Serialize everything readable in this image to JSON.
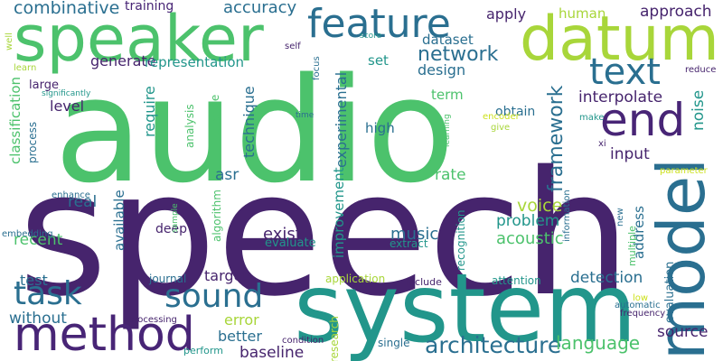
{
  "palette": {
    "dark_purple": "#46246d",
    "purple": "#482576",
    "blue": "#2a6f90",
    "teal": "#22968b",
    "green": "#4cc26c",
    "yellow_green": "#a8d63a",
    "yellow": "#cde11d"
  },
  "words": [
    {
      "text": "speech",
      "color": "#46246d"
    },
    {
      "text": "audio",
      "color": "#4cc26c"
    },
    {
      "text": "system",
      "color": "#22968b"
    },
    {
      "text": "speaker",
      "color": "#4cc26c"
    },
    {
      "text": "datum",
      "color": "#a8d63a"
    },
    {
      "text": "model",
      "color": "#2a6f90"
    },
    {
      "text": "feature",
      "color": "#2a6f90"
    },
    {
      "text": "end",
      "color": "#482576"
    },
    {
      "text": "method",
      "color": "#482576"
    },
    {
      "text": "task",
      "color": "#2a6f90"
    },
    {
      "text": "sound",
      "color": "#2a6f90"
    },
    {
      "text": "text",
      "color": "#2a6f90"
    },
    {
      "text": "architecture",
      "color": "#2a6f90"
    },
    {
      "text": "network",
      "color": "#2a6f90"
    },
    {
      "text": "framework",
      "color": "#2a6f90"
    },
    {
      "text": "language",
      "color": "#4cc26c"
    },
    {
      "text": "combinative",
      "color": "#2a6f90"
    },
    {
      "text": "accuracy",
      "color": "#2a6f90"
    },
    {
      "text": "training",
      "color": "#482576"
    },
    {
      "text": "apply",
      "color": "#46246d"
    },
    {
      "text": "human",
      "color": "#a8d63a"
    },
    {
      "text": "approach",
      "color": "#46246d"
    },
    {
      "text": "dataset",
      "color": "#2a6f90"
    },
    {
      "text": "generate",
      "color": "#46246d"
    },
    {
      "text": "representation",
      "color": "#22968b"
    },
    {
      "text": "set",
      "color": "#22968b"
    },
    {
      "text": "design",
      "color": "#2a6f90"
    },
    {
      "text": "interpolate",
      "color": "#46246d"
    },
    {
      "text": "noise",
      "color": "#22968b"
    },
    {
      "text": "level",
      "color": "#46246d"
    },
    {
      "text": "require",
      "color": "#22968b"
    },
    {
      "text": "technique",
      "color": "#2a6f90"
    },
    {
      "text": "experimental",
      "color": "#2a6f90"
    },
    {
      "text": "term",
      "color": "#4cc26c"
    },
    {
      "text": "large",
      "color": "#46246d"
    },
    {
      "text": "classification",
      "color": "#4cc26c"
    },
    {
      "text": "process",
      "color": "#2a6f90"
    },
    {
      "text": "analysis",
      "color": "#4cc26c"
    },
    {
      "text": "challenge",
      "color": "#4cc26c"
    },
    {
      "text": "high",
      "color": "#2a6f90"
    },
    {
      "text": "obtain",
      "color": "#2a6f90"
    },
    {
      "text": "input",
      "color": "#46246d"
    },
    {
      "text": "rate",
      "color": "#4cc26c"
    },
    {
      "text": "asr",
      "color": "#2a6f90"
    },
    {
      "text": "real",
      "color": "#2a6f90"
    },
    {
      "text": "recent",
      "color": "#4cc26c"
    },
    {
      "text": "voice",
      "color": "#a8d63a"
    },
    {
      "text": "problem",
      "color": "#22968b"
    },
    {
      "text": "acoustic",
      "color": "#4cc26c"
    },
    {
      "text": "music",
      "color": "#2a6f90"
    },
    {
      "text": "exist",
      "color": "#46246d"
    },
    {
      "text": "improvement",
      "color": "#22968b"
    },
    {
      "text": "available",
      "color": "#2a6f90"
    },
    {
      "text": "deep",
      "color": "#46246d"
    },
    {
      "text": "algorithm",
      "color": "#4cc26c"
    },
    {
      "text": "evaluate",
      "color": "#22968b"
    },
    {
      "text": "extract",
      "color": "#22968b"
    },
    {
      "text": "address",
      "color": "#2a6f90"
    },
    {
      "text": "target",
      "color": "#46246d"
    },
    {
      "text": "test",
      "color": "#2a6f90"
    },
    {
      "text": "detection",
      "color": "#2a6f90"
    },
    {
      "text": "evaluation",
      "color": "#2a6f90"
    },
    {
      "text": "source",
      "color": "#46246d"
    },
    {
      "text": "error",
      "color": "#a8d63a"
    },
    {
      "text": "better",
      "color": "#2a6f90"
    },
    {
      "text": "baseline",
      "color": "#46246d"
    },
    {
      "text": "without",
      "color": "#2a6f90"
    },
    {
      "text": "recognition",
      "color": "#22968b"
    },
    {
      "text": "research",
      "color": "#a8d63a"
    },
    {
      "text": "application",
      "color": "#a8d63a"
    },
    {
      "text": "include",
      "color": "#46246d"
    },
    {
      "text": "attention",
      "color": "#22968b"
    },
    {
      "text": "journal",
      "color": "#2a6f90"
    },
    {
      "text": "processing",
      "color": "#46246d"
    },
    {
      "text": "condition",
      "color": "#46246d"
    },
    {
      "text": "single",
      "color": "#2a6f90"
    },
    {
      "text": "perform",
      "color": "#22968b"
    },
    {
      "text": "automatic",
      "color": "#2a6f90"
    },
    {
      "text": "frequency",
      "color": "#46246d"
    },
    {
      "text": "low",
      "color": "#cde11d"
    },
    {
      "text": "parameter",
      "color": "#cde11d"
    },
    {
      "text": "multiple",
      "color": "#4cc26c"
    },
    {
      "text": "new",
      "color": "#2a6f90"
    },
    {
      "text": "information",
      "color": "#2a6f90"
    },
    {
      "text": "xi",
      "color": "#46246d"
    },
    {
      "text": "make",
      "color": "#22968b"
    },
    {
      "text": "encoder",
      "color": "#cde11d"
    },
    {
      "text": "give",
      "color": "#a8d63a"
    },
    {
      "text": "reduce",
      "color": "#46246d"
    },
    {
      "text": "learning",
      "color": "#4cc26c"
    },
    {
      "text": "time",
      "color": "#2a6f90"
    },
    {
      "text": "focus",
      "color": "#2a6f90"
    },
    {
      "text": "score",
      "color": "#22968b"
    },
    {
      "text": "self",
      "color": "#46246d"
    },
    {
      "text": "well",
      "color": "#a8d63a"
    },
    {
      "text": "learn",
      "color": "#a8d63a"
    },
    {
      "text": "significantly",
      "color": "#22968b"
    },
    {
      "text": "enhance",
      "color": "#2a6f90"
    },
    {
      "text": "sample",
      "color": "#4cc26c"
    },
    {
      "text": "embedding",
      "color": "#2a6f90"
    }
  ]
}
